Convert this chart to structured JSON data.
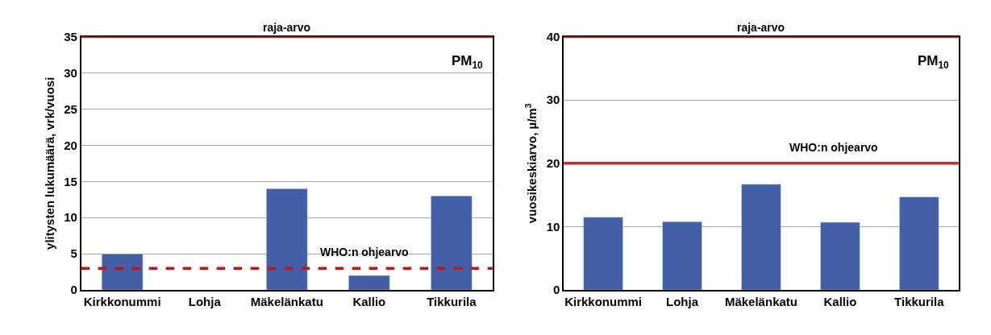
{
  "chart_data": [
    {
      "type": "bar",
      "categories": [
        "Kirkkonummi",
        "Lohja",
        "Mäkelänkatu",
        "Kallio",
        "Tikkurila"
      ],
      "values": [
        5,
        null,
        14,
        2,
        13
      ],
      "color": "#4360a6",
      "ylabel": "ylitysten lukumäärä, vrk/vuosi",
      "ylim": [
        0,
        35
      ],
      "yticks": [
        0,
        5,
        10,
        15,
        20,
        25,
        30,
        35
      ],
      "grid": "y",
      "annotations": [
        "PM$_{10}$"
      ],
      "ref_lines": [
        {
          "axis": "y",
          "value": 35,
          "label": "raja-arvo",
          "color": "#c0302b",
          "line_style": "solid"
        },
        {
          "axis": "y",
          "value": 3,
          "label": "WHO:n ohjearvo",
          "color": "#cc1111",
          "line_style": "dashed"
        }
      ]
    },
    {
      "type": "bar",
      "categories": [
        "Kirkkonummi",
        "Lohja",
        "Mäkelänkatu",
        "Kallio",
        "Tikkurila"
      ],
      "values": [
        11.5,
        10.8,
        16.7,
        10.7,
        14.7
      ],
      "color": "#4360a6",
      "ylabel": "vuosikeskiarvo, µ/m$^{3}$",
      "ylim": [
        0,
        40
      ],
      "yticks": [
        0,
        10,
        20,
        30,
        40
      ],
      "grid": "y",
      "annotations": [
        "PM$_{10}$"
      ],
      "ref_lines": [
        {
          "axis": "y",
          "value": 40,
          "label": "raja-arvo",
          "color": "#c0302b",
          "line_style": "solid"
        },
        {
          "axis": "y",
          "value": 20,
          "label": "WHO:n ohjearvo",
          "color": "#c0302b",
          "line_style": "solid"
        }
      ]
    }
  ]
}
